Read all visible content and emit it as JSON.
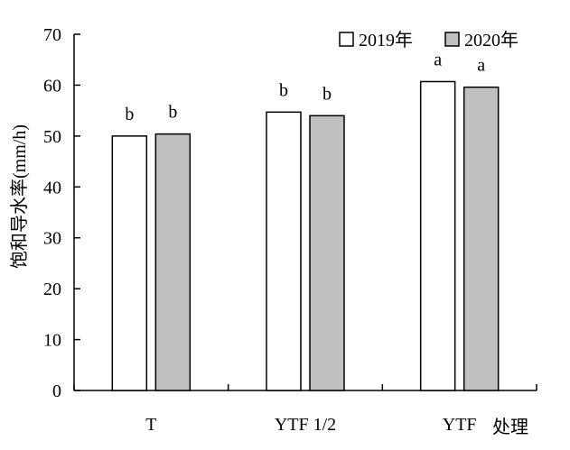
{
  "chart_data": {
    "type": "bar",
    "categories": [
      "T",
      "YTF 1/2",
      "YTF"
    ],
    "series": [
      {
        "name": "2019年",
        "values": [
          50,
          54.7,
          60.7
        ],
        "letters": [
          "b",
          "b",
          "a"
        ],
        "color": "#ffffff"
      },
      {
        "name": "2020年",
        "values": [
          50.4,
          54,
          59.6
        ],
        "letters": [
          "b",
          "b",
          "a"
        ],
        "color": "#c0c0c0"
      }
    ],
    "ylabel": "饱和导水率(mm/h)",
    "xlabel": "处理",
    "ylim": [
      0,
      70
    ],
    "yticks": [
      0,
      10,
      20,
      30,
      40,
      50,
      60,
      70
    ],
    "legend_position": "top-right",
    "grid": false
  }
}
